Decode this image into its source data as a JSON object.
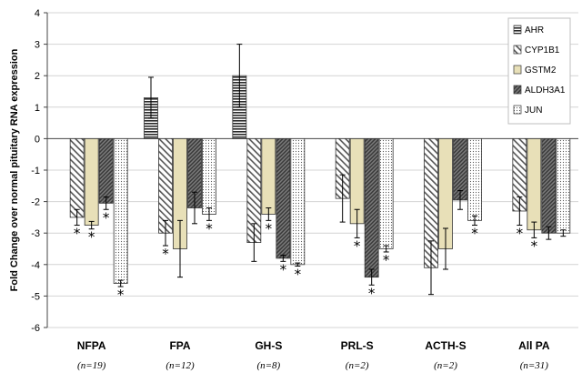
{
  "chart_data": {
    "type": "bar",
    "ylabel": "Fold Change over normal pituitary RNA expression",
    "ylim": [
      -6,
      4
    ],
    "yticks": [
      4,
      3,
      2,
      1,
      0,
      -1,
      -2,
      -3,
      -4,
      -5,
      -6
    ],
    "grid": true,
    "legend_position": "top-right",
    "categories": [
      "NFPA",
      "FPA",
      "GH-S",
      "PRL-S",
      "ACTH-S",
      "All PA"
    ],
    "category_n": [
      "(n=19)",
      "(n=12)",
      "(n=8)",
      "(n=2)",
      "(n=2)",
      "(n=31)"
    ],
    "series": [
      {
        "name": "AHR",
        "pattern": "horizontal-lines",
        "values": [
          null,
          1.3,
          2.0,
          null,
          null,
          null
        ],
        "errors": [
          null,
          0.65,
          1.0,
          null,
          null,
          null
        ],
        "significant": [
          false,
          false,
          false,
          false,
          false,
          false
        ]
      },
      {
        "name": "CYP1B1",
        "pattern": "diagonal-lines",
        "values": [
          -2.5,
          -3.0,
          -3.3,
          -1.9,
          -4.1,
          -2.3
        ],
        "errors": [
          0.25,
          0.4,
          0.6,
          0.75,
          0.85,
          0.45
        ],
        "significant": [
          true,
          true,
          false,
          false,
          false,
          true
        ]
      },
      {
        "name": "GSTM2",
        "pattern": "solid-beige",
        "values": [
          -2.75,
          -3.5,
          -2.4,
          -2.7,
          -3.5,
          -2.9
        ],
        "errors": [
          0.12,
          0.9,
          0.2,
          0.45,
          0.65,
          0.25
        ],
        "significant": [
          true,
          false,
          true,
          true,
          false,
          true
        ]
      },
      {
        "name": "ALDH3A1",
        "pattern": "dense-lines",
        "values": [
          -2.05,
          -2.2,
          -3.8,
          -4.4,
          -1.95,
          -3.0
        ],
        "errors": [
          0.2,
          0.5,
          0.1,
          0.25,
          0.3,
          0.2
        ],
        "significant": [
          true,
          false,
          true,
          true,
          false,
          false
        ]
      },
      {
        "name": "JUN",
        "pattern": "dotted",
        "values": [
          -4.6,
          -2.4,
          -4.0,
          -3.5,
          -2.6,
          -3.0
        ],
        "errors": [
          0.1,
          0.2,
          0.05,
          0.1,
          0.15,
          0.1
        ],
        "significant": [
          true,
          true,
          true,
          true,
          true,
          false
        ]
      }
    ],
    "annotations": {
      "marker": "*"
    }
  }
}
